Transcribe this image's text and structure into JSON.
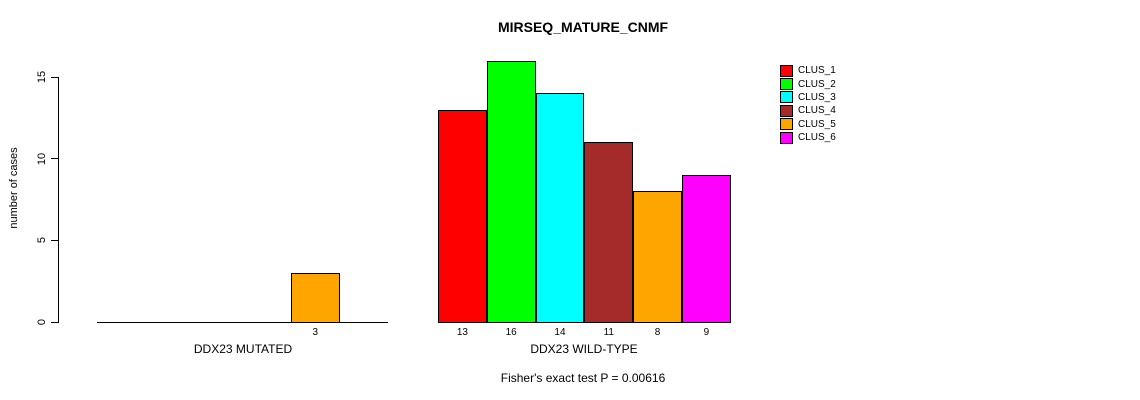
{
  "page": {
    "background_color": "#FFFFFF",
    "text_color": "#000000"
  },
  "chart_data": {
    "type": "bar",
    "title": "MIRSEQ_MATURE_CNMF",
    "ylabel": "number of cases",
    "xlabel": "",
    "ylim": [
      0,
      15
    ],
    "yticks": [
      0,
      5,
      10,
      15
    ],
    "grid": false,
    "legend_position": "top-right",
    "series_names": [
      "CLUS_1",
      "CLUS_2",
      "CLUS_3",
      "CLUS_4",
      "CLUS_5",
      "CLUS_6"
    ],
    "colors": [
      "#FF0000",
      "#00FF00",
      "#00FFFF",
      "#A52A2A",
      "#FFA500",
      "#FF00FF"
    ],
    "categories": [
      "DDX23 MUTATED",
      "DDX23 WILD-TYPE"
    ],
    "groups": [
      {
        "label": "DDX23 MUTATED",
        "values": [
          0,
          0,
          0,
          0,
          3,
          0
        ]
      },
      {
        "label": "DDX23 WILD-TYPE",
        "values": [
          13,
          16,
          14,
          11,
          8,
          9
        ]
      }
    ],
    "bar_value_labels": {
      "shown_for_nonzero_only": true
    },
    "bar_border_color": "#000000",
    "footnote": "Fisher's exact test P = 0.00616"
  }
}
